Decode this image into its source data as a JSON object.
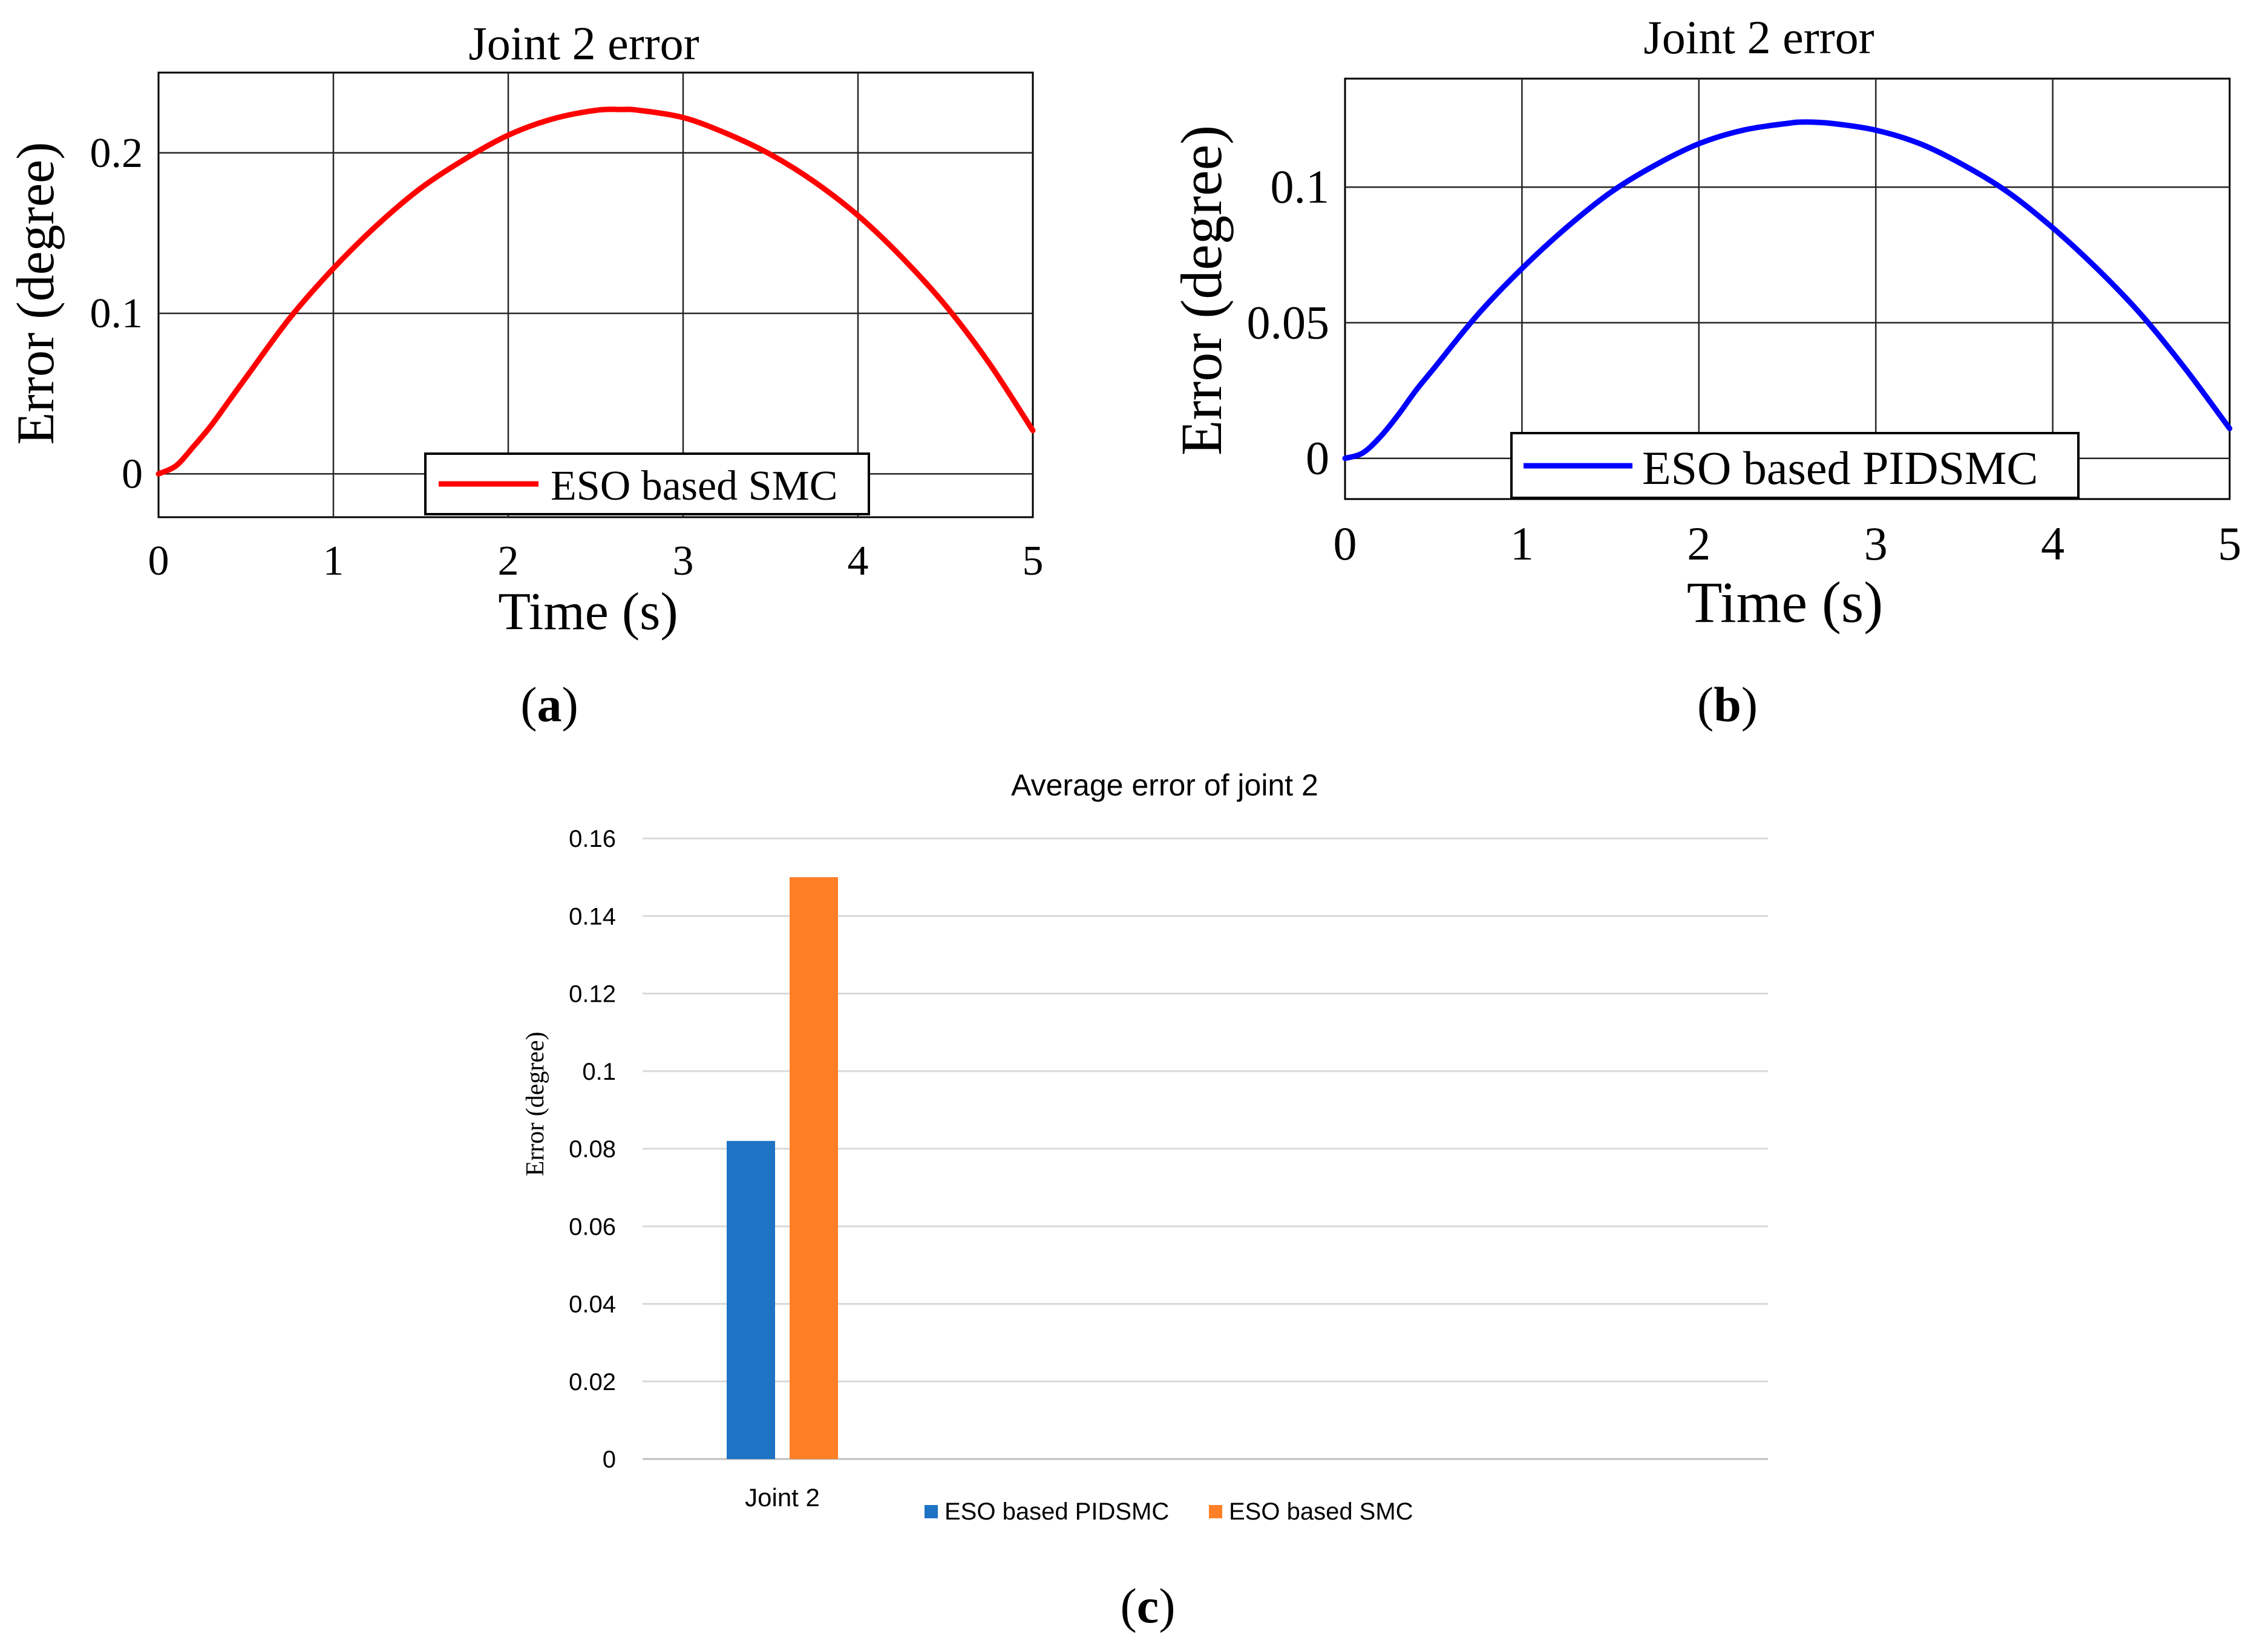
{
  "chart_data": [
    {
      "type": "line",
      "panel_label": "a",
      "title": "Joint 2 error",
      "xlabel": "Time (s)",
      "ylabel": "Error (degree)",
      "xlim": [
        0,
        5
      ],
      "ylim": [
        -0.027,
        0.25
      ],
      "xticks": [
        0,
        1,
        2,
        3,
        4,
        5
      ],
      "xtick_labels": [
        "0",
        "1",
        "2",
        "3",
        "4",
        "5"
      ],
      "yticks": [
        0,
        0.1,
        0.2
      ],
      "ytick_labels": [
        "0",
        "0.1",
        "0.2"
      ],
      "grid": true,
      "legend_position": "bottom-center",
      "series": [
        {
          "name": "ESO based SMC",
          "color": "#ff0000",
          "x": [
            0,
            0.1,
            0.2,
            0.3,
            0.4,
            0.5,
            0.75,
            1,
            1.25,
            1.5,
            1.75,
            2,
            2.25,
            2.5,
            2.65,
            2.75,
            3,
            3.25,
            3.5,
            3.75,
            4,
            4.25,
            4.5,
            4.75,
            5
          ],
          "y": [
            0,
            0.005,
            0.017,
            0.03,
            0.045,
            0.06,
            0.097,
            0.128,
            0.155,
            0.178,
            0.196,
            0.211,
            0.221,
            0.2265,
            0.227,
            0.2265,
            0.222,
            0.212,
            0.199,
            0.182,
            0.161,
            0.135,
            0.105,
            0.069,
            0.027
          ]
        }
      ]
    },
    {
      "type": "line",
      "panel_label": "b",
      "title": "Joint 2 error",
      "xlabel": "Time (s)",
      "ylabel": "Error (degree)",
      "xlim": [
        0,
        5
      ],
      "ylim": [
        -0.015,
        0.14
      ],
      "xticks": [
        0,
        1,
        2,
        3,
        4,
        5
      ],
      "xtick_labels": [
        "0",
        "1",
        "2",
        "3",
        "4",
        "5"
      ],
      "yticks": [
        0,
        0.05,
        0.1
      ],
      "ytick_labels": [
        "0",
        "0.05",
        "0.1"
      ],
      "grid": true,
      "legend_position": "bottom-center",
      "series": [
        {
          "name": "ESO based PIDSMC",
          "color": "#0000ff",
          "x": [
            0,
            0.1,
            0.2,
            0.3,
            0.4,
            0.5,
            0.75,
            1,
            1.25,
            1.5,
            1.75,
            2,
            2.25,
            2.5,
            2.6,
            2.75,
            3,
            3.25,
            3.5,
            3.75,
            4,
            4.25,
            4.5,
            4.75,
            5
          ],
          "y": [
            0,
            0.002,
            0.008,
            0.016,
            0.025,
            0.033,
            0.053,
            0.07,
            0.085,
            0.098,
            0.108,
            0.116,
            0.121,
            0.1235,
            0.124,
            0.1235,
            0.121,
            0.116,
            0.108,
            0.098,
            0.085,
            0.07,
            0.053,
            0.033,
            0.011
          ]
        }
      ]
    },
    {
      "type": "bar",
      "panel_label": "c",
      "title": "Average error of joint 2",
      "xlabel": "",
      "ylabel": "Error (degree)",
      "ylim": [
        0,
        0.16
      ],
      "yticks": [
        0,
        0.02,
        0.04,
        0.06,
        0.08,
        0.1,
        0.12,
        0.14,
        0.16
      ],
      "ytick_labels": [
        "0",
        "0.02",
        "0.04",
        "0.06",
        "0.08",
        "0.1",
        "0.12",
        "0.14",
        "0.16"
      ],
      "grid": true,
      "legend_position": "bottom",
      "categories": [
        "Joint 2"
      ],
      "series": [
        {
          "name": "ESO based PIDSMC",
          "color": "#1f73c4",
          "values": [
            0.082
          ]
        },
        {
          "name": "ESO based SMC",
          "color": "#ff7f27",
          "values": [
            0.15
          ]
        }
      ]
    }
  ]
}
